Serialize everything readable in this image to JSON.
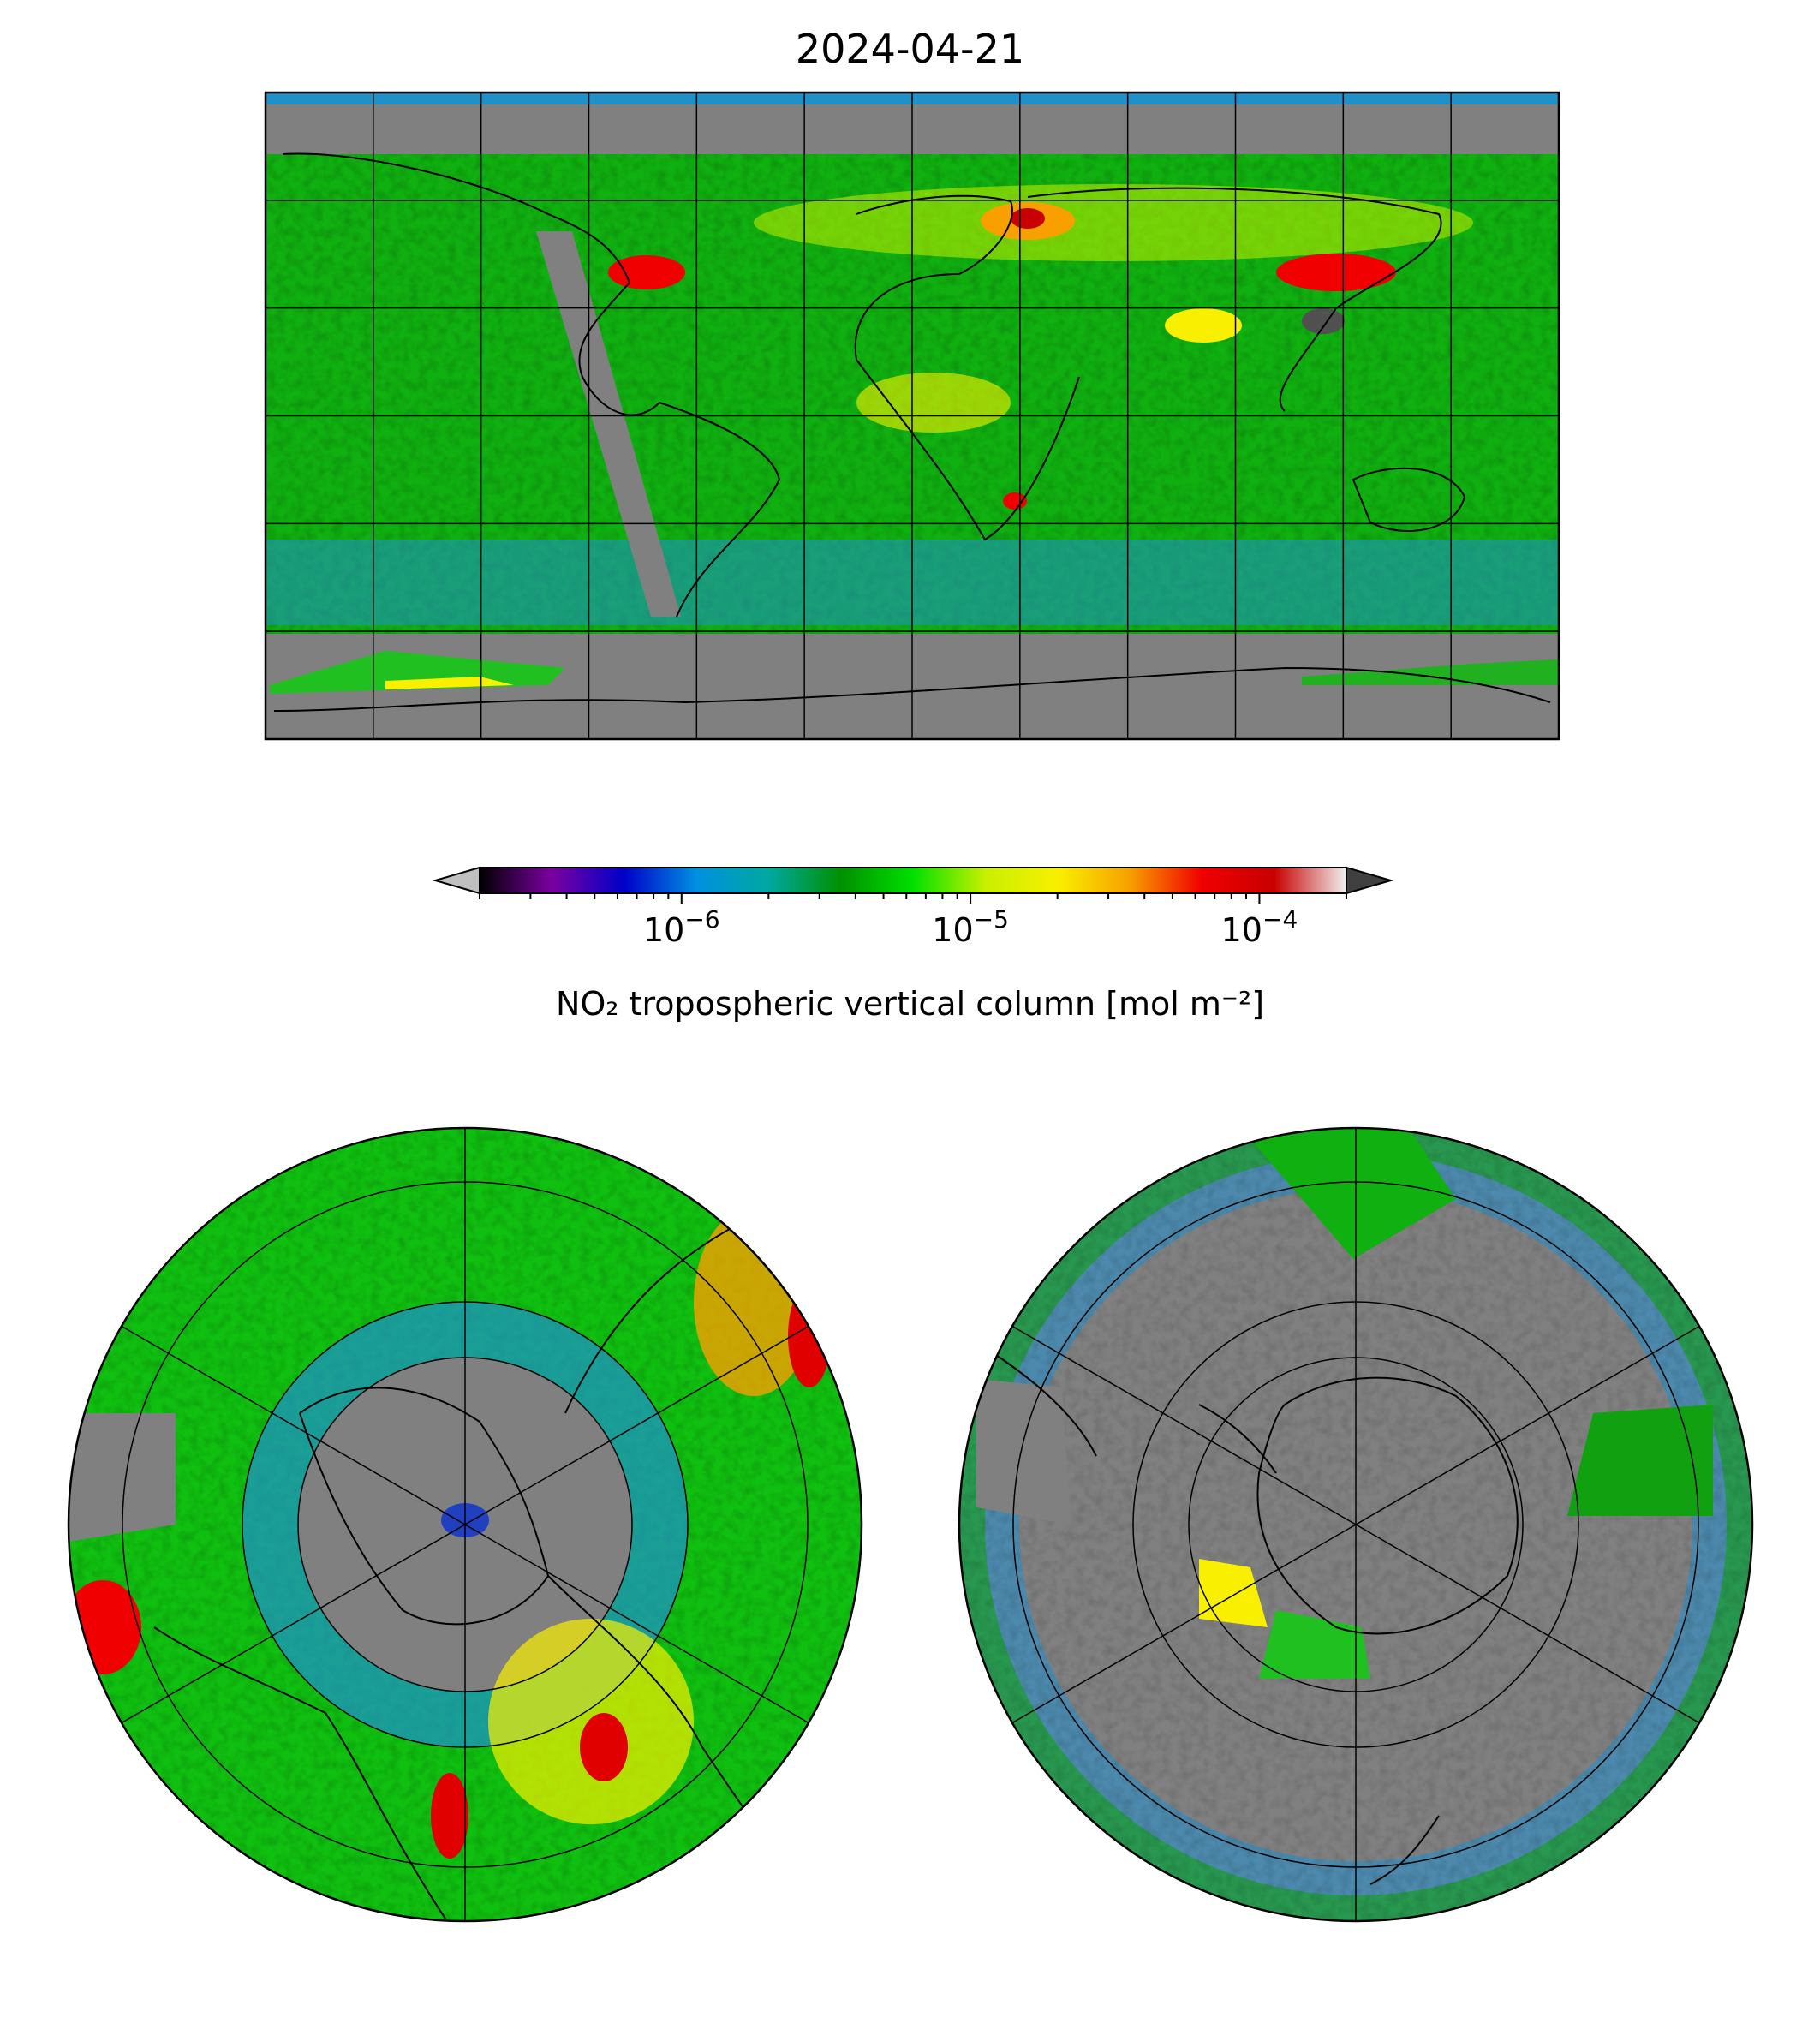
{
  "title": "2024-04-21",
  "colorbar": {
    "label": "NO₂ tropospheric vertical column [mol m⁻²]",
    "scale": "log",
    "range": [
      2e-07,
      0.0002
    ],
    "tick_labels": [
      {
        "value": 1e-06,
        "base": "10",
        "exp": "−6"
      },
      {
        "value": 1e-05,
        "base": "10",
        "exp": "−5"
      },
      {
        "value": 0.0001,
        "base": "10",
        "exp": "−4"
      }
    ],
    "extend": "both",
    "colormap_stops": [
      "#000000",
      "#7a00a0",
      "#0000c8",
      "#0090e0",
      "#00a8a0",
      "#009000",
      "#00e000",
      "#c8f000",
      "#f8f000",
      "#f8a000",
      "#f00000",
      "#c80000",
      "#f0f0f0"
    ],
    "under_color": "#c0c0c0",
    "over_color": "#404040"
  },
  "maps": [
    {
      "name": "global",
      "projection": "plate-carree",
      "no_data_color": "#808080"
    },
    {
      "name": "north-polar",
      "projection": "north-polar-stereographic",
      "no_data_color": "#808080"
    },
    {
      "name": "south-polar",
      "projection": "south-polar-stereographic",
      "no_data_color": "#808080"
    }
  ]
}
